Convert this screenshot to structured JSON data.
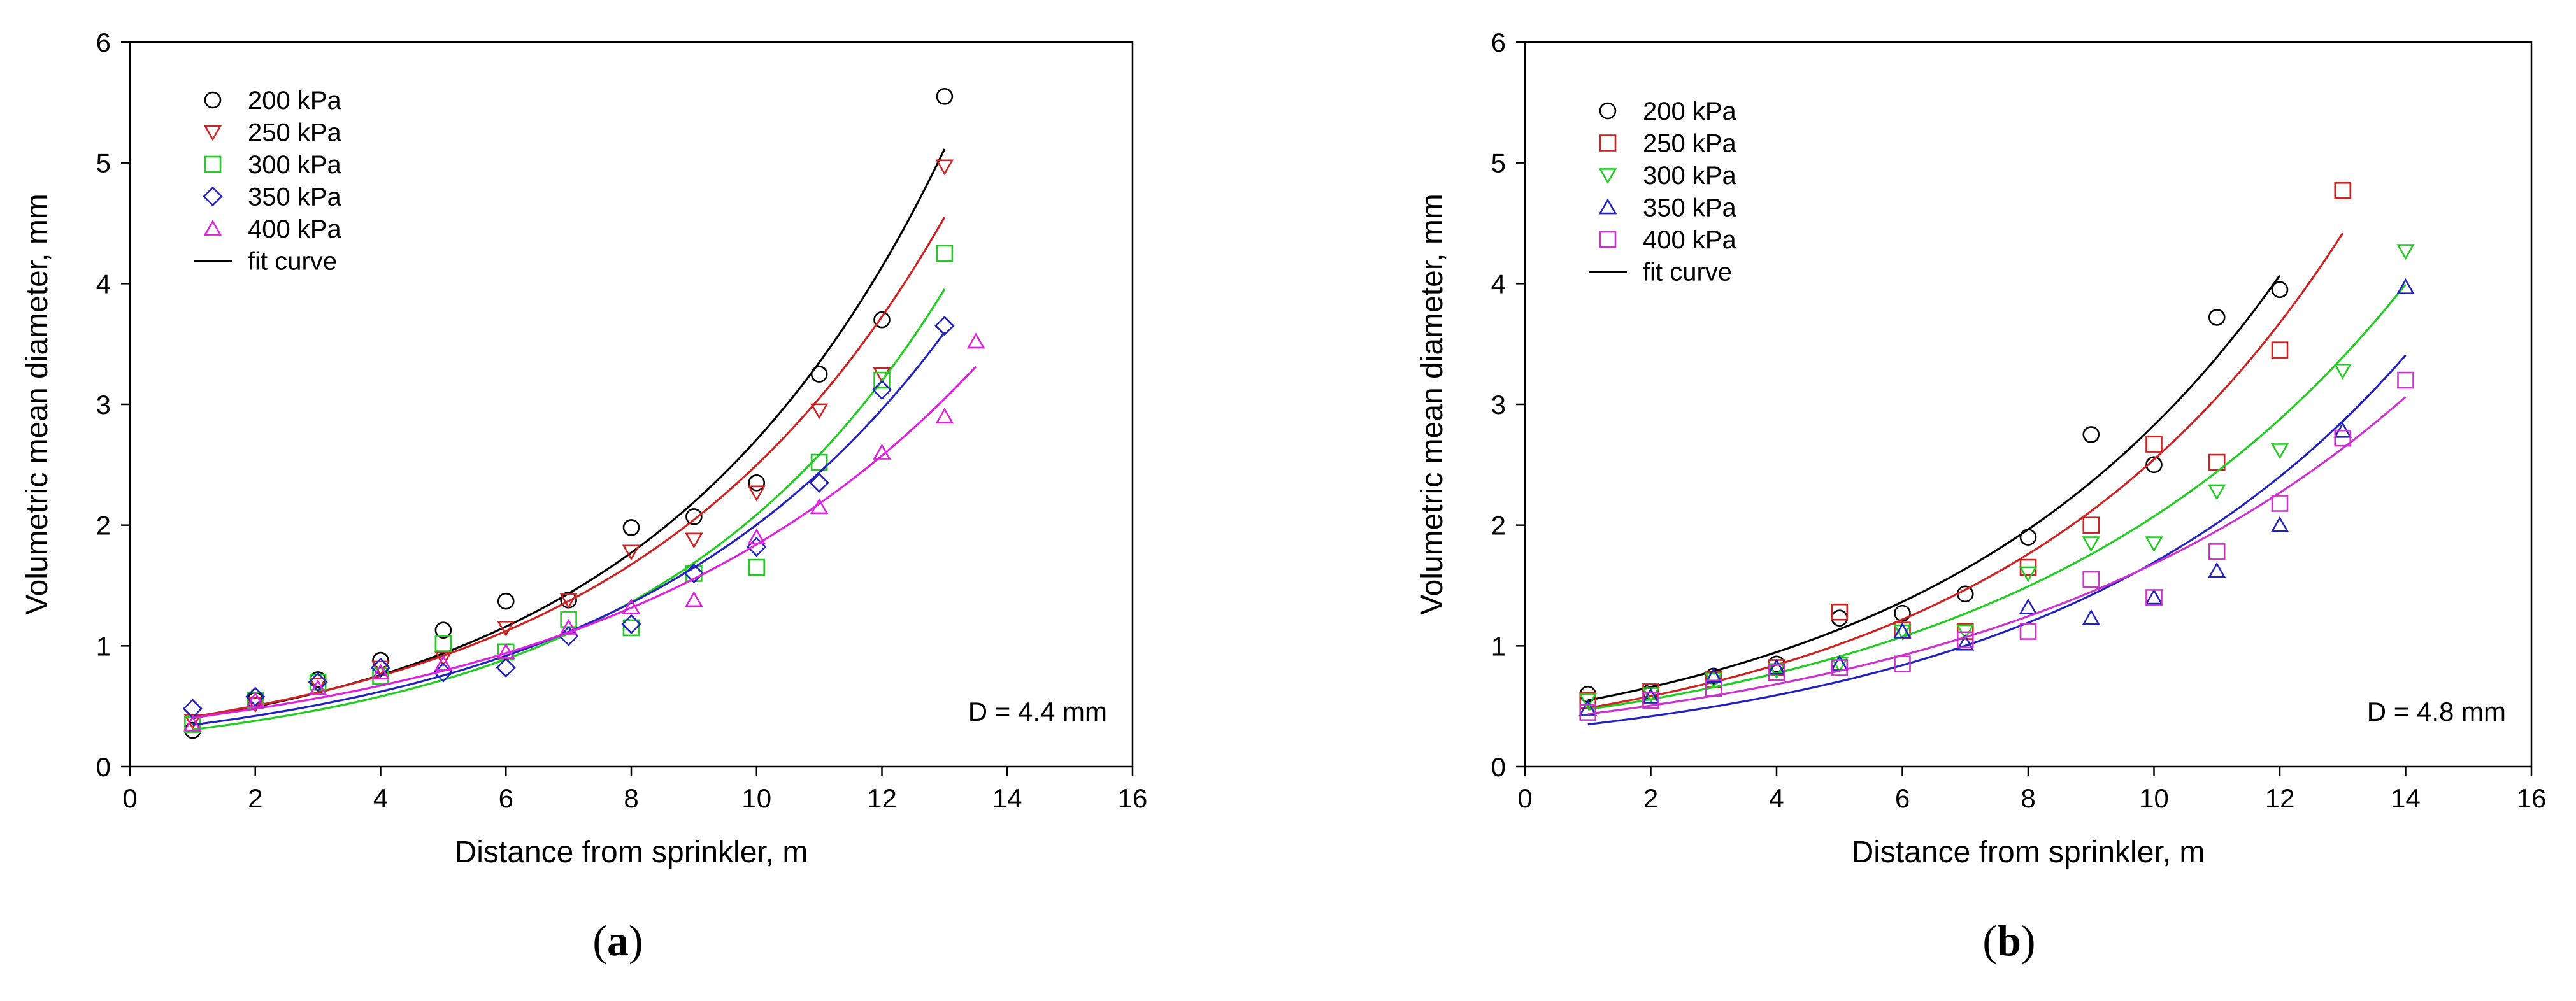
{
  "captions": {
    "a": {
      "open": "(",
      "letter": "a",
      "close": ")"
    },
    "b": {
      "open": "(",
      "letter": "b",
      "close": ")"
    }
  },
  "chart_data": [
    {
      "type": "scatter",
      "xlabel": "Distance from sprinkler, m",
      "ylabel": "Volumetric mean diameter, mm",
      "xlim": [
        0,
        16
      ],
      "ylim": [
        0,
        6
      ],
      "xticks": [
        "0",
        "2",
        "4",
        "6",
        "8",
        "10",
        "12",
        "14",
        "16"
      ],
      "yticks": [
        "0",
        "1",
        "2",
        "3",
        "4",
        "5",
        "6"
      ],
      "annotation": "D = 4.4 mm",
      "grid": false,
      "legend_position": "top-left",
      "fit_legend_label": "fit curve",
      "series": [
        {
          "name": "200 kPa",
          "marker": "circle",
          "color": "#000000",
          "x": [
            1,
            2,
            3,
            4,
            5,
            6,
            7,
            8,
            9,
            10,
            11,
            12,
            13
          ],
          "y": [
            0.3,
            0.55,
            0.72,
            0.88,
            1.13,
            1.37,
            1.38,
            1.98,
            2.07,
            2.35,
            3.25,
            3.7,
            5.55
          ],
          "fit": {
            "a": 0.325,
            "b": 0.212,
            "x_range": [
              1,
              13
            ]
          }
        },
        {
          "name": "250 kPa",
          "marker": "triangle-down",
          "color": "#cc2222",
          "x": [
            1,
            2,
            3,
            4,
            5,
            6,
            7,
            8,
            9,
            10,
            11,
            12,
            13
          ],
          "y": [
            0.38,
            0.52,
            0.68,
            0.82,
            0.9,
            1.15,
            1.38,
            1.78,
            1.88,
            2.27,
            2.95,
            3.25,
            4.97
          ],
          "fit": {
            "a": 0.338,
            "b": 0.2,
            "x_range": [
              1,
              13
            ]
          }
        },
        {
          "name": "300 kPa",
          "marker": "square",
          "color": "#22cc22",
          "x": [
            1,
            2,
            3,
            4,
            5,
            6,
            7,
            8,
            9,
            10,
            11,
            12,
            13
          ],
          "y": [
            0.35,
            0.55,
            0.7,
            0.75,
            1.02,
            0.95,
            1.22,
            1.15,
            1.6,
            1.65,
            2.52,
            3.2,
            4.25
          ],
          "fit": {
            "a": 0.248,
            "b": 0.213,
            "x_range": [
              1,
              13
            ]
          }
        },
        {
          "name": "350 kPa",
          "marker": "diamond",
          "color": "#2222bb",
          "x": [
            1,
            2,
            3,
            4,
            5,
            6,
            7,
            8,
            9,
            10,
            11,
            12,
            13
          ],
          "y": [
            0.48,
            0.58,
            0.7,
            0.82,
            0.78,
            0.82,
            1.08,
            1.18,
            1.6,
            1.82,
            2.35,
            3.12,
            3.65
          ],
          "fit": {
            "a": 0.285,
            "b": 0.195,
            "x_range": [
              1,
              13
            ]
          }
        },
        {
          "name": "400 kPa",
          "marker": "triangle-up",
          "color": "#dd22dd",
          "x": [
            1,
            2,
            3,
            4,
            5,
            6,
            7,
            8,
            9,
            10,
            11,
            12,
            13,
            13.5
          ],
          "y": [
            0.35,
            0.55,
            0.65,
            0.78,
            0.85,
            0.95,
            1.15,
            1.32,
            1.38,
            1.9,
            2.15,
            2.6,
            2.9,
            3.52
          ],
          "fit": {
            "a": 0.343,
            "b": 0.168,
            "x_range": [
              1,
              13.5
            ]
          }
        }
      ]
    },
    {
      "type": "scatter",
      "xlabel": "Distance from sprinkler, m",
      "ylabel": "Volumetric mean diameter, mm",
      "xlim": [
        0,
        16
      ],
      "ylim": [
        0,
        6
      ],
      "xticks": [
        "0",
        "2",
        "4",
        "6",
        "8",
        "10",
        "12",
        "14",
        "16"
      ],
      "yticks": [
        "0",
        "1",
        "2",
        "3",
        "4",
        "5",
        "6"
      ],
      "annotation": "D = 4.8 mm",
      "grid": false,
      "legend_position": "top-left",
      "fit_legend_label": "fit curve",
      "series": [
        {
          "name": "200 kPa",
          "marker": "circle",
          "color": "#000000",
          "x": [
            1,
            2,
            3,
            4,
            5,
            6,
            7,
            8,
            9,
            10,
            11,
            12
          ],
          "y": [
            0.6,
            0.62,
            0.75,
            0.85,
            1.23,
            1.27,
            1.43,
            1.9,
            2.75,
            2.5,
            3.72,
            3.95
          ],
          "fit": {
            "a": 0.458,
            "b": 0.182,
            "x_range": [
              1,
              12
            ]
          }
        },
        {
          "name": "250 kPa",
          "marker": "square",
          "color": "#cc2222",
          "x": [
            1,
            2,
            3,
            4,
            5,
            6,
            7,
            8,
            9,
            10,
            11,
            12,
            13
          ],
          "y": [
            0.55,
            0.62,
            0.72,
            0.82,
            1.28,
            1.13,
            1.12,
            1.65,
            2.0,
            2.67,
            2.52,
            3.45,
            4.77
          ],
          "fit": {
            "a": 0.404,
            "b": 0.184,
            "x_range": [
              1,
              13
            ]
          }
        },
        {
          "name": "300 kPa",
          "marker": "triangle-down",
          "color": "#22cc22",
          "x": [
            1,
            2,
            3,
            4,
            5,
            6,
            7,
            8,
            9,
            10,
            11,
            12,
            13,
            14
          ],
          "y": [
            0.55,
            0.6,
            0.72,
            0.8,
            0.85,
            1.12,
            1.12,
            1.6,
            1.85,
            1.85,
            2.28,
            2.62,
            3.28,
            4.27
          ],
          "fit": {
            "a": 0.402,
            "b": 0.164,
            "x_range": [
              1,
              14
            ]
          }
        },
        {
          "name": "350 kPa",
          "marker": "triangle-up",
          "color": "#2222bb",
          "x": [
            1,
            2,
            3,
            4,
            5,
            6,
            7,
            8,
            9,
            10,
            11,
            12,
            13,
            14
          ],
          "y": [
            0.48,
            0.58,
            0.75,
            0.82,
            0.85,
            1.12,
            1.02,
            1.32,
            1.23,
            1.4,
            1.62,
            2.0,
            2.78,
            3.97
          ],
          "fit": {
            "a": 0.294,
            "b": 0.175,
            "x_range": [
              1,
              14
            ]
          }
        },
        {
          "name": "400 kPa",
          "marker": "square",
          "color": "#cc33cc",
          "x": [
            1,
            2,
            3,
            4,
            5,
            6,
            7,
            8,
            9,
            10,
            11,
            12,
            13,
            14
          ],
          "y": [
            0.45,
            0.55,
            0.65,
            0.78,
            0.82,
            0.85,
            1.05,
            1.12,
            1.55,
            1.4,
            1.78,
            2.18,
            2.72,
            3.2
          ],
          "fit": {
            "a": 0.375,
            "b": 0.15,
            "x_range": [
              1,
              14
            ]
          }
        }
      ]
    }
  ]
}
